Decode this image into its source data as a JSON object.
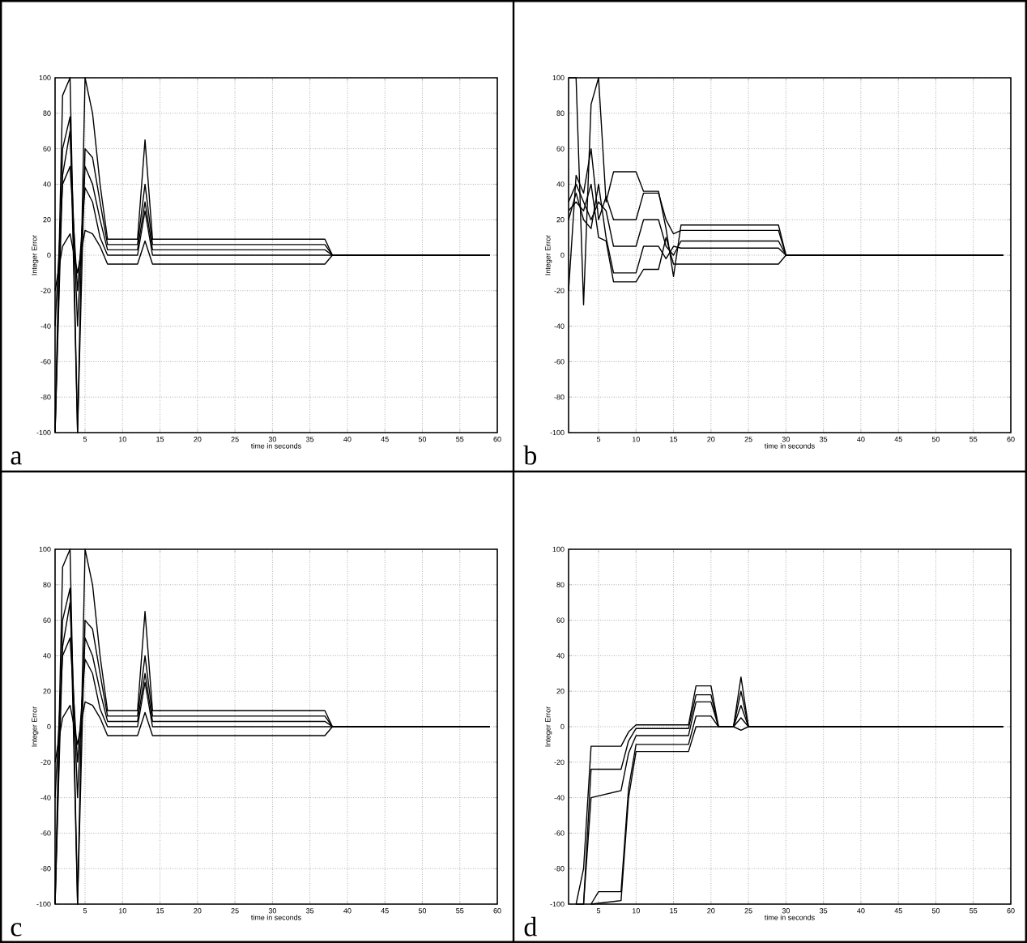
{
  "chart_data": [
    {
      "type": "line",
      "xlabel": "time in seconds",
      "ylabel": "Integer Error",
      "xlim": [
        1,
        60
      ],
      "ylim": [
        -100,
        100
      ],
      "xticks": [
        5,
        10,
        15,
        20,
        25,
        30,
        35,
        40,
        45,
        50,
        55,
        60
      ],
      "yticks": [
        -100,
        -80,
        -60,
        -40,
        -20,
        0,
        20,
        40,
        60,
        80,
        100
      ],
      "grid": true,
      "annotations": [
        "a"
      ],
      "series": [
        {
          "color": "#000000",
          "x": [
            1,
            2,
            3,
            4,
            5,
            6,
            7,
            8,
            12,
            13,
            14,
            37,
            38,
            59
          ],
          "values": [
            -100,
            90,
            100,
            -100,
            100,
            80,
            40,
            9,
            9,
            65,
            9,
            9,
            0,
            0
          ]
        },
        {
          "color": "#000000",
          "x": [
            1,
            2,
            3,
            4,
            5,
            6,
            7,
            8,
            12,
            13,
            14,
            37,
            38,
            59
          ],
          "values": [
            -100,
            60,
            78,
            -100,
            60,
            55,
            30,
            6,
            6,
            40,
            6,
            6,
            0,
            0
          ]
        },
        {
          "color": "#000000",
          "x": [
            1,
            2,
            3,
            4,
            5,
            6,
            7,
            8,
            12,
            13,
            14,
            37,
            38,
            59
          ],
          "values": [
            -100,
            45,
            70,
            -40,
            50,
            40,
            20,
            3,
            3,
            30,
            3,
            3,
            0,
            0
          ]
        },
        {
          "color": "#000000",
          "x": [
            1,
            2,
            3,
            4,
            5,
            6,
            7,
            8,
            12,
            13,
            14,
            37,
            38,
            59
          ],
          "values": [
            -40,
            40,
            50,
            -20,
            38,
            30,
            10,
            0,
            0,
            25,
            0,
            0,
            0,
            0
          ]
        },
        {
          "color": "#000000",
          "x": [
            1,
            2,
            3,
            4,
            5,
            6,
            7,
            8,
            12,
            13,
            14,
            37,
            38,
            59
          ],
          "values": [
            -20,
            5,
            12,
            -10,
            14,
            12,
            5,
            -5,
            -5,
            8,
            -5,
            -5,
            0,
            0
          ]
        }
      ]
    },
    {
      "type": "line",
      "xlabel": "time in seconds",
      "ylabel": "Integer Error",
      "xlim": [
        1,
        60
      ],
      "ylim": [
        -100,
        100
      ],
      "xticks": [
        5,
        10,
        15,
        20,
        25,
        30,
        35,
        40,
        45,
        50,
        55,
        60
      ],
      "yticks": [
        -100,
        -80,
        -60,
        -40,
        -20,
        0,
        20,
        40,
        60,
        80,
        100
      ],
      "grid": true,
      "annotations": [
        "b"
      ],
      "series": [
        {
          "color": "#000000",
          "x": [
            1,
            2,
            3,
            4,
            5,
            6,
            7,
            10,
            11,
            13,
            14,
            15,
            16,
            29,
            30,
            59
          ],
          "values": [
            100,
            100,
            -28,
            85,
            100,
            30,
            47,
            47,
            36,
            36,
            15,
            -12,
            17,
            17,
            0,
            0
          ]
        },
        {
          "color": "#000000",
          "x": [
            1,
            2,
            3,
            4,
            5,
            6,
            7,
            10,
            11,
            13,
            14,
            15,
            16,
            29,
            30,
            59
          ],
          "values": [
            -20,
            45,
            35,
            60,
            20,
            33,
            20,
            20,
            35,
            35,
            20,
            12,
            14,
            14,
            0,
            0
          ]
        },
        {
          "color": "#000000",
          "x": [
            1,
            2,
            3,
            4,
            5,
            6,
            7,
            10,
            11,
            13,
            14,
            15,
            16,
            29,
            30,
            59
          ],
          "values": [
            30,
            40,
            30,
            20,
            30,
            25,
            5,
            5,
            20,
            20,
            5,
            0,
            8,
            8,
            0,
            0
          ]
        },
        {
          "color": "#000000",
          "x": [
            1,
            2,
            3,
            4,
            5,
            6,
            7,
            10,
            11,
            13,
            14,
            15,
            16,
            29,
            30,
            59
          ],
          "values": [
            20,
            35,
            20,
            15,
            40,
            10,
            -10,
            -10,
            5,
            5,
            -2,
            5,
            4,
            4,
            0,
            0
          ]
        },
        {
          "color": "#000000",
          "x": [
            1,
            2,
            3,
            4,
            5,
            6,
            7,
            10,
            11,
            13,
            14,
            15,
            16,
            29,
            30,
            59
          ],
          "values": [
            25,
            30,
            25,
            40,
            10,
            8,
            -15,
            -15,
            -8,
            -8,
            10,
            -5,
            -5,
            -5,
            0,
            0
          ]
        }
      ]
    },
    {
      "type": "line",
      "xlabel": "time in seconds",
      "ylabel": "Integer Error",
      "xlim": [
        1,
        60
      ],
      "ylim": [
        -100,
        100
      ],
      "xticks": [
        5,
        10,
        15,
        20,
        25,
        30,
        35,
        40,
        45,
        50,
        55,
        60
      ],
      "yticks": [
        -100,
        -80,
        -60,
        -40,
        -20,
        0,
        20,
        40,
        60,
        80,
        100
      ],
      "grid": true,
      "annotations": [
        "c"
      ],
      "series": [
        {
          "color": "#000000",
          "x": [
            1,
            2,
            3,
            4,
            5,
            6,
            7,
            8,
            12,
            13,
            14,
            37,
            38,
            59
          ],
          "values": [
            -100,
            90,
            100,
            -100,
            100,
            80,
            40,
            9,
            9,
            65,
            9,
            9,
            0,
            0
          ]
        },
        {
          "color": "#000000",
          "x": [
            1,
            2,
            3,
            4,
            5,
            6,
            7,
            8,
            12,
            13,
            14,
            37,
            38,
            59
          ],
          "values": [
            -100,
            60,
            78,
            -100,
            60,
            55,
            30,
            6,
            6,
            40,
            6,
            6,
            0,
            0
          ]
        },
        {
          "color": "#000000",
          "x": [
            1,
            2,
            3,
            4,
            5,
            6,
            7,
            8,
            12,
            13,
            14,
            37,
            38,
            59
          ],
          "values": [
            -100,
            45,
            70,
            -40,
            50,
            40,
            20,
            3,
            3,
            30,
            3,
            3,
            0,
            0
          ]
        },
        {
          "color": "#000000",
          "x": [
            1,
            2,
            3,
            4,
            5,
            6,
            7,
            8,
            12,
            13,
            14,
            37,
            38,
            59
          ],
          "values": [
            -40,
            40,
            50,
            -20,
            38,
            30,
            10,
            0,
            0,
            25,
            0,
            0,
            0,
            0
          ]
        },
        {
          "color": "#000000",
          "x": [
            1,
            2,
            3,
            4,
            5,
            6,
            7,
            8,
            12,
            13,
            14,
            37,
            38,
            59
          ],
          "values": [
            -20,
            5,
            12,
            -10,
            14,
            12,
            5,
            -5,
            -5,
            8,
            -5,
            -5,
            0,
            0
          ]
        }
      ]
    },
    {
      "type": "line",
      "xlabel": "time in seconds",
      "ylabel": "Integer Error",
      "xlim": [
        1,
        60
      ],
      "ylim": [
        -100,
        100
      ],
      "xticks": [
        5,
        10,
        15,
        20,
        25,
        30,
        35,
        40,
        45,
        50,
        55,
        60
      ],
      "yticks": [
        -100,
        -80,
        -60,
        -40,
        -20,
        0,
        20,
        40,
        60,
        80,
        100
      ],
      "grid": true,
      "annotations": [
        "d"
      ],
      "series": [
        {
          "color": "#000000",
          "x": [
            2,
            3,
            4,
            8,
            9,
            10,
            17,
            18,
            20,
            21,
            23,
            24,
            25,
            59
          ],
          "values": [
            -100,
            -80,
            -11,
            -11,
            -3,
            1,
            1,
            23,
            23,
            0,
            0,
            28,
            0,
            0
          ]
        },
        {
          "color": "#000000",
          "x": [
            2,
            3,
            4,
            8,
            9,
            10,
            17,
            18,
            20,
            21,
            23,
            24,
            25,
            59
          ],
          "values": [
            -100,
            -100,
            -24,
            -24,
            -8,
            -1,
            -1,
            18,
            18,
            0,
            0,
            20,
            0,
            0
          ]
        },
        {
          "color": "#000000",
          "x": [
            3,
            4,
            8,
            9,
            10,
            17,
            18,
            20,
            21,
            23,
            24,
            25,
            59
          ],
          "values": [
            -100,
            -40,
            -36,
            -15,
            -5,
            -5,
            14,
            14,
            0,
            0,
            12,
            0,
            0
          ]
        },
        {
          "color": "#000000",
          "x": [
            4,
            5,
            8,
            9,
            10,
            17,
            18,
            20,
            21,
            23,
            24,
            25,
            59
          ],
          "values": [
            -100,
            -93,
            -93,
            -35,
            -10,
            -10,
            6,
            6,
            0,
            0,
            5,
            0,
            0
          ]
        },
        {
          "color": "#000000",
          "x": [
            4,
            8,
            9,
            10,
            17,
            18,
            20,
            21,
            23,
            24,
            25,
            59
          ],
          "values": [
            -100,
            -98,
            -40,
            -14,
            -14,
            0,
            0,
            0,
            0,
            -2,
            0,
            0
          ]
        }
      ]
    }
  ]
}
